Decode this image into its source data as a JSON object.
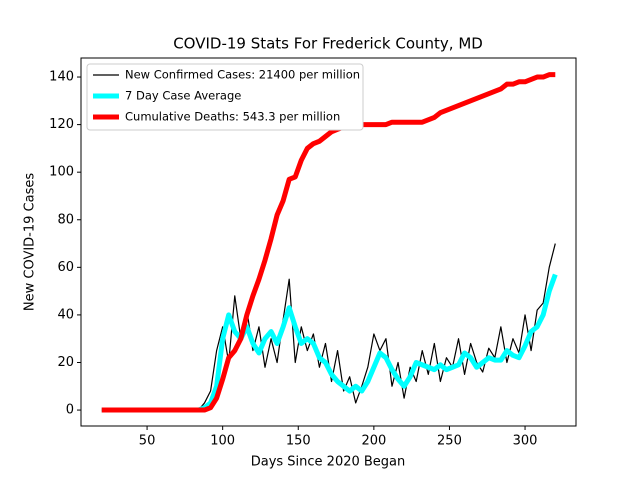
{
  "chart_data": {
    "type": "line",
    "title": "COVID-19 Stats For Frederick County, MD",
    "xlabel": "Days Since 2020 Began",
    "ylabel": "New COVID-19 Cases",
    "x": [
      20,
      24,
      28,
      32,
      36,
      40,
      44,
      48,
      52,
      56,
      60,
      64,
      68,
      72,
      76,
      80,
      84,
      88,
      92,
      96,
      100,
      104,
      108,
      112,
      116,
      120,
      124,
      128,
      132,
      136,
      140,
      144,
      148,
      152,
      156,
      160,
      164,
      168,
      172,
      176,
      180,
      184,
      188,
      192,
      196,
      200,
      204,
      208,
      212,
      216,
      220,
      224,
      228,
      232,
      236,
      240,
      244,
      248,
      252,
      256,
      260,
      264,
      268,
      272,
      276,
      280,
      284,
      288,
      292,
      296,
      300,
      304,
      308,
      312,
      316,
      320
    ],
    "series": [
      {
        "name": "New Confirmed Cases: 21400 per million",
        "color": "#000000",
        "width": 1.2,
        "values": [
          0,
          0,
          0,
          0,
          0,
          0,
          0,
          0,
          0,
          0,
          0,
          0,
          0,
          0,
          0,
          0,
          0,
          3,
          8,
          25,
          35,
          20,
          48,
          30,
          42,
          25,
          35,
          18,
          30,
          20,
          38,
          55,
          20,
          35,
          25,
          32,
          18,
          28,
          12,
          25,
          8,
          14,
          3,
          10,
          18,
          32,
          25,
          30,
          10,
          20,
          5,
          18,
          12,
          25,
          15,
          28,
          12,
          22,
          18,
          30,
          15,
          28,
          20,
          16,
          26,
          22,
          35,
          20,
          30,
          24,
          40,
          25,
          42,
          45,
          60,
          70
        ]
      },
      {
        "name": "7 Day Case Average",
        "color": "#00ffff",
        "width": 5,
        "values": [
          0,
          0,
          0,
          0,
          0,
          0,
          0,
          0,
          0,
          0,
          0,
          0,
          0,
          0,
          0,
          0,
          0,
          1,
          3,
          10,
          30,
          40,
          33,
          30,
          35,
          28,
          24,
          30,
          33,
          28,
          35,
          43,
          35,
          28,
          30,
          28,
          22,
          20,
          15,
          12,
          10,
          8,
          10,
          8,
          12,
          18,
          24,
          22,
          17,
          13,
          10,
          14,
          20,
          19,
          18,
          17,
          19,
          17,
          18,
          19,
          24,
          22,
          18,
          20,
          22,
          21,
          21,
          25,
          23,
          22,
          27,
          33,
          35,
          40,
          50,
          57
        ]
      },
      {
        "name": "Cumulative Deaths: 543.3 per million",
        "color": "#ff0000",
        "width": 5,
        "values": [
          0,
          0,
          0,
          0,
          0,
          0,
          0,
          0,
          0,
          0,
          0,
          0,
          0,
          0,
          0,
          0,
          0,
          0,
          1,
          5,
          13,
          22,
          25,
          30,
          40,
          48,
          55,
          63,
          72,
          82,
          88,
          97,
          98,
          105,
          110,
          112,
          113,
          115,
          117,
          118,
          119,
          120,
          120,
          120,
          120,
          120,
          120,
          120,
          121,
          121,
          121,
          121,
          121,
          121,
          122,
          123,
          125,
          126,
          127,
          128,
          129,
          130,
          131,
          132,
          133,
          134,
          135,
          137,
          137,
          138,
          138,
          139,
          140,
          140,
          141,
          141
        ]
      }
    ],
    "xlim": [
      6.3,
      333.7
    ],
    "ylim": [
      -6.7,
      148.0
    ],
    "xticks": [
      50,
      100,
      150,
      200,
      250,
      300
    ],
    "yticks": [
      0,
      20,
      40,
      60,
      80,
      100,
      120,
      140
    ],
    "legend": "upper left"
  }
}
